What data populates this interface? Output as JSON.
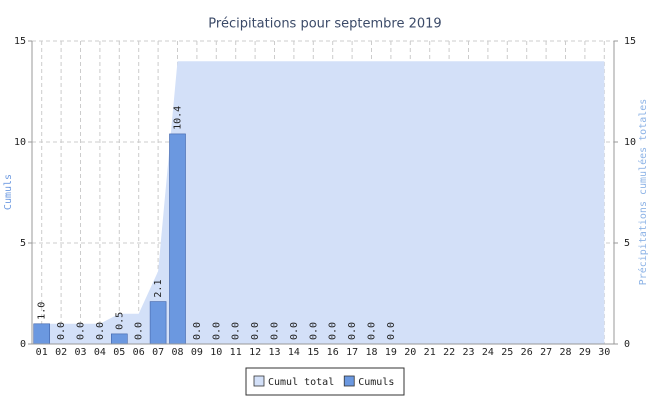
{
  "chart_data": {
    "type": "bar",
    "title": "Précipitations pour septembre 2019",
    "ylabel": "Cumuls",
    "y2label": "Précipitations cumulées totales",
    "categories": [
      "01",
      "02",
      "03",
      "04",
      "05",
      "06",
      "07",
      "08",
      "09",
      "10",
      "11",
      "12",
      "13",
      "14",
      "15",
      "16",
      "17",
      "18",
      "19",
      "20",
      "21",
      "22",
      "23",
      "24",
      "25",
      "26",
      "27",
      "28",
      "29",
      "30"
    ],
    "series": [
      {
        "name": "Cumul total",
        "type": "area",
        "axis": "y2",
        "color": "#d3e0f8",
        "values": [
          1.0,
          1.0,
          1.0,
          1.0,
          1.5,
          1.5,
          3.6,
          14.0,
          14.0,
          14.0,
          14.0,
          14.0,
          14.0,
          14.0,
          14.0,
          14.0,
          14.0,
          14.0,
          14.0,
          14.0,
          14.0,
          14.0,
          14.0,
          14.0,
          14.0,
          14.0,
          14.0,
          14.0,
          14.0,
          14.0
        ]
      },
      {
        "name": "Cumuls",
        "type": "bar",
        "color": "#6b98e0",
        "values": [
          1.0,
          0.0,
          0.0,
          0.0,
          0.5,
          0.0,
          2.1,
          10.4,
          0.0,
          0.0,
          0.0,
          0.0,
          0.0,
          0.0,
          0.0,
          0.0,
          0.0,
          0.0,
          0.0,
          null,
          null,
          null,
          null,
          null,
          null,
          null,
          null,
          null,
          null,
          null
        ],
        "value_labels": [
          "1.0",
          "0.0",
          "0.0",
          "0.0",
          "0.5",
          "0.0",
          "2.1",
          "10.4",
          "0.0",
          "0.0",
          "0.0",
          "0.0",
          "0.0",
          "0.0",
          "0.0",
          "0.0",
          "0.0",
          "0.0",
          "0.0",
          null,
          null,
          null,
          null,
          null,
          null,
          null,
          null,
          null,
          null,
          null
        ]
      }
    ],
    "ylim": [
      0,
      15
    ],
    "yticks": [
      0,
      5,
      10,
      15
    ],
    "y2lim": [
      0,
      15
    ],
    "y2ticks": [
      0,
      5,
      10,
      15
    ],
    "grid": true,
    "legend": "bottom"
  }
}
